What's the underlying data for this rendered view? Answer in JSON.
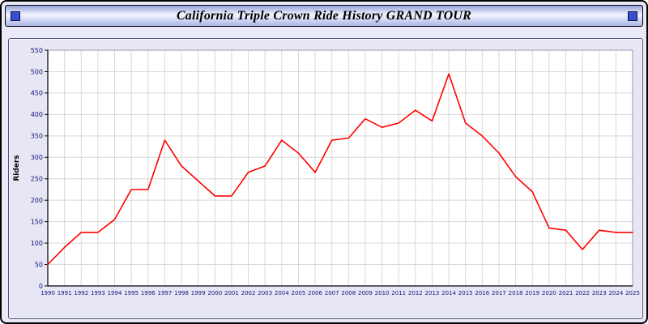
{
  "title": "California Triple Crown Ride History GRAND TOUR",
  "decor": {
    "left_square": "title-bar-square",
    "right_square": "title-bar-square",
    "square_color": "#3a4fd0"
  },
  "chart_data": {
    "type": "line",
    "title": "California Triple Crown Ride History GRAND TOUR",
    "x": [
      "1990",
      "1991",
      "1992",
      "1993",
      "1994",
      "1995",
      "1996",
      "1997",
      "1998",
      "1999",
      "2000",
      "2001",
      "2002",
      "2003",
      "2004",
      "2005",
      "2006",
      "2007",
      "2008",
      "2009",
      "2010",
      "2011",
      "2012",
      "2013",
      "2014",
      "2015",
      "2016",
      "2017",
      "2018",
      "2019",
      "2020",
      "2021",
      "2022",
      "2023",
      "2024",
      "2025"
    ],
    "series": [
      {
        "name": "Riders",
        "color": "#ff0000",
        "values": [
          50,
          90,
          125,
          125,
          155,
          225,
          225,
          340,
          280,
          245,
          210,
          210,
          265,
          280,
          340,
          310,
          265,
          340,
          345,
          390,
          370,
          380,
          410,
          385,
          495,
          380,
          350,
          310,
          255,
          220,
          135,
          130,
          85,
          130,
          125,
          125
        ]
      }
    ],
    "xlabel": "",
    "ylabel": "Riders",
    "ylim": [
      0,
      550
    ],
    "ytick_step": 50,
    "grid": true,
    "legend_position": "none",
    "plot_bg": "#ffffff",
    "grid_color": "#d8d8d8",
    "axis_color": "#000000",
    "xtick_color": "#14147a",
    "ytick_color": "#14147a"
  }
}
